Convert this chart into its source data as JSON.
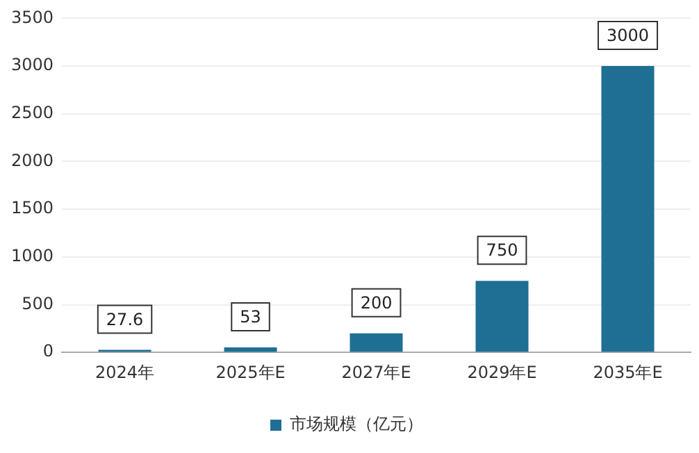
{
  "chart_data": {
    "type": "bar",
    "categories": [
      "2024年",
      "2025年E",
      "2027年E",
      "2029年E",
      "2035年E"
    ],
    "series": [
      {
        "name": "市场规模（亿元）",
        "color": "#1f6f94",
        "values": [
          27.6,
          53,
          200,
          750,
          3000
        ]
      }
    ],
    "ylim": [
      0,
      3500
    ],
    "yticks": [
      0,
      500,
      1000,
      1500,
      2000,
      2500,
      3000,
      3500
    ],
    "grid": "y",
    "legend": "bottom",
    "data_labels": true
  }
}
